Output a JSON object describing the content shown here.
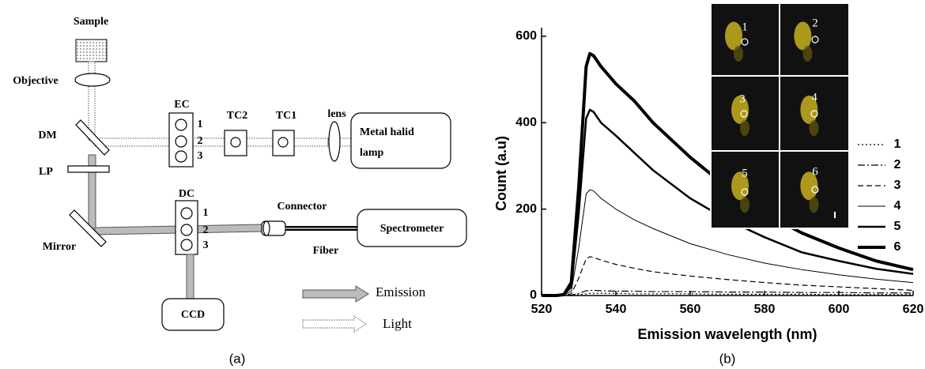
{
  "diagram": {
    "sample": "Sample",
    "objective": "Objective",
    "ec": "EC",
    "tc2": "TC2",
    "tc1": "TC1",
    "lens": "lens",
    "lamp": [
      "Metal halid",
      "lamp"
    ],
    "dm": "DM",
    "lp": "LP",
    "mirror": "Mirror",
    "dc": "DC",
    "connector": "Connector",
    "spectrometer": "Spectrometer",
    "fiber": "Fiber",
    "ccd": "CCD",
    "emission": "Emission",
    "light": "Light",
    "ec_ports": [
      "1",
      "2",
      "3"
    ],
    "dc_ports": [
      "1",
      "2",
      "3"
    ]
  },
  "panel_labels": [
    "(a)",
    "(b)"
  ],
  "inset_labels": [
    "1",
    "2",
    "3",
    "4",
    "5",
    "6"
  ],
  "chart_data": {
    "type": "line",
    "xlabel": "Emission wavelength (nm)",
    "ylabel": "Count (a.u)",
    "x": [
      520,
      524,
      526,
      528,
      530,
      532,
      533,
      534,
      536,
      540,
      545,
      550,
      560,
      570,
      580,
      590,
      600,
      610,
      620
    ],
    "xlim": [
      520,
      620
    ],
    "xticks": [
      520,
      540,
      560,
      580,
      600,
      620
    ],
    "ylim": [
      0,
      620
    ],
    "yticks": [
      0,
      200,
      400,
      600
    ],
    "legend": "right",
    "series": [
      {
        "name": "1",
        "color": "#000000",
        "linestyle": "dotted",
        "linewidth": 1.2,
        "values": [
          0,
          0,
          0,
          0,
          2,
          4,
          5,
          5,
          5,
          5,
          4,
          4,
          4,
          3,
          3,
          3,
          2,
          2,
          2
        ]
      },
      {
        "name": "2",
        "color": "#000000",
        "linestyle": "dashdot",
        "linewidth": 1.2,
        "values": [
          0,
          0,
          0,
          1,
          5,
          11,
          12,
          12,
          11,
          10,
          10,
          9,
          9,
          8,
          8,
          7,
          7,
          6,
          6
        ]
      },
      {
        "name": "3",
        "color": "#000000",
        "linestyle": "dashed",
        "linewidth": 1.2,
        "values": [
          0,
          0,
          0,
          4,
          40,
          85,
          90,
          88,
          82,
          72,
          63,
          55,
          45,
          37,
          30,
          24,
          20,
          16,
          12
        ]
      },
      {
        "name": "4",
        "color": "#000000",
        "linestyle": "solid",
        "linewidth": 1,
        "values": [
          0,
          0,
          1,
          10,
          110,
          235,
          245,
          242,
          225,
          200,
          175,
          155,
          120,
          95,
          75,
          60,
          48,
          38,
          30
        ]
      },
      {
        "name": "5",
        "color": "#000000",
        "linestyle": "solid",
        "linewidth": 2.5,
        "values": [
          0,
          0,
          2,
          20,
          190,
          410,
          430,
          425,
          400,
          370,
          330,
          290,
          225,
          175,
          135,
          100,
          80,
          62,
          50
        ]
      },
      {
        "name": "6",
        "color": "#000000",
        "linestyle": "solid",
        "linewidth": 4,
        "values": [
          0,
          0,
          2,
          30,
          250,
          530,
          560,
          555,
          530,
          490,
          450,
          400,
          320,
          250,
          190,
          145,
          110,
          80,
          60
        ]
      }
    ]
  }
}
